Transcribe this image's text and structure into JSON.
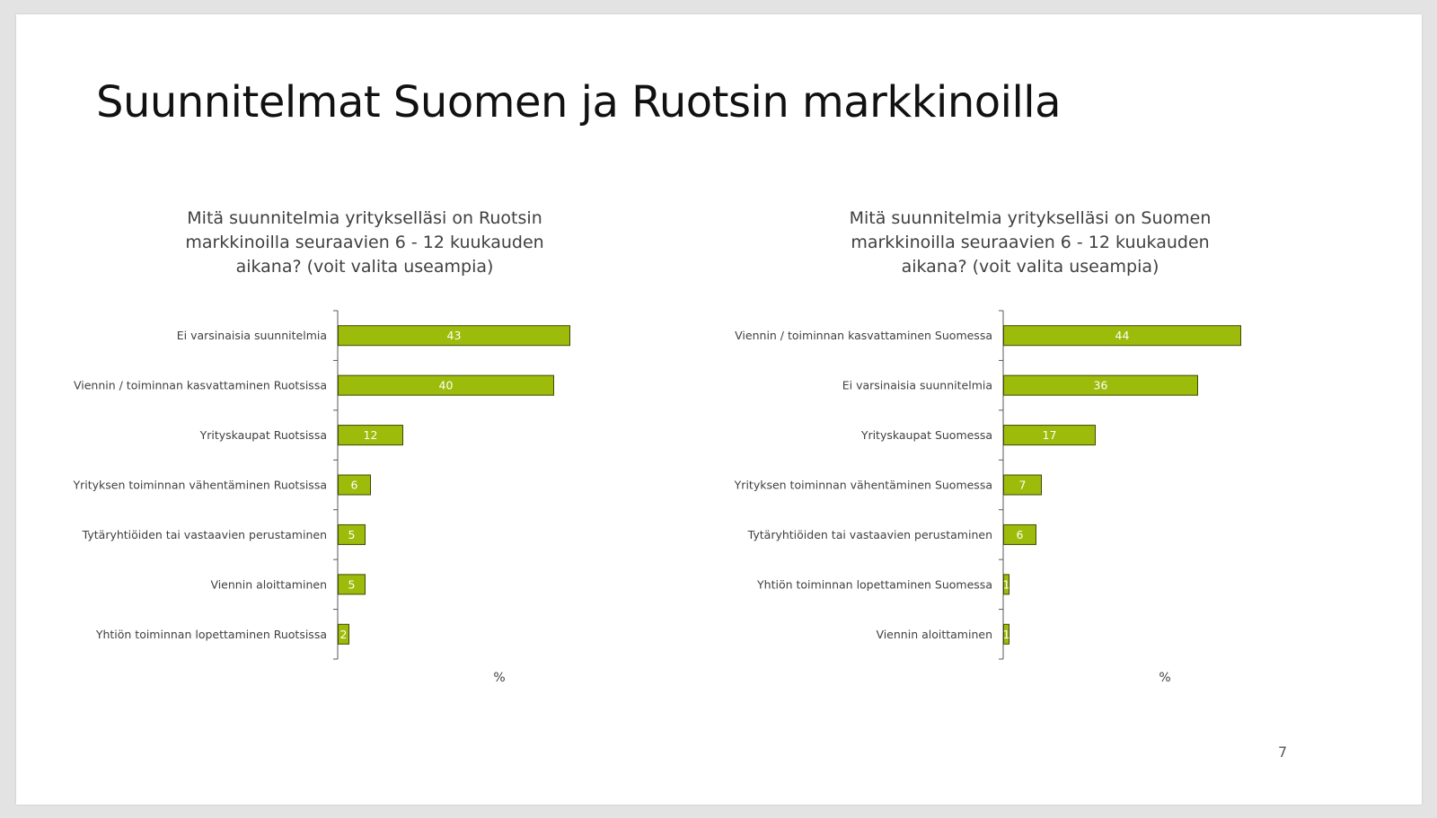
{
  "slide": {
    "title": "Suunnitelmat Suomen ja Ruotsin markkinoilla",
    "page_number": "7"
  },
  "colors": {
    "bar_fill": "#9dbb0a",
    "bar_stroke": "#3f4a00",
    "axis": "#595959",
    "label_text": "#404040",
    "value_text": "#ffffff"
  },
  "chart_data": [
    {
      "type": "bar",
      "orientation": "horizontal",
      "title": "Mitä suunnitelmia yritykselläsi on Ruotsin markkinoilla seuraavien 6 - 12 kuukauden aikana? (voit valita useampia)",
      "xlabel": "%",
      "ylabel": "",
      "xlim": [
        0,
        100
      ],
      "grid": false,
      "legend": "none",
      "categories": [
        "Ei varsinaisia suunnitelmia",
        "Viennin / toiminnan kasvattaminen Ruotsissa",
        "Yrityskaupat Ruotsissa",
        "Yrityksen toiminnan vähentäminen Ruotsissa",
        "Tytäryhtiöiden tai vastaavien perustaminen",
        "Viennin aloittaminen",
        "Yhtiön toiminnan lopettaminen Ruotsissa"
      ],
      "values": [
        43,
        40,
        12,
        6,
        5,
        5,
        2
      ]
    },
    {
      "type": "bar",
      "orientation": "horizontal",
      "title": "Mitä suunnitelmia yritykselläsi on Suomen markkinoilla seuraavien 6 - 12 kuukauden aikana? (voit valita useampia)",
      "xlabel": "%",
      "ylabel": "",
      "xlim": [
        0,
        100
      ],
      "grid": false,
      "legend": "none",
      "categories": [
        "Viennin / toiminnan kasvattaminen Suomessa",
        "Ei varsinaisia suunnitelmia",
        "Yrityskaupat Suomessa",
        "Yrityksen toiminnan vähentäminen Suomessa",
        "Tytäryhtiöiden tai vastaavien perustaminen",
        "Yhtiön toiminnan lopettaminen Suomessa",
        "Viennin aloittaminen"
      ],
      "values": [
        44,
        36,
        17,
        7,
        6,
        1,
        1
      ]
    }
  ]
}
